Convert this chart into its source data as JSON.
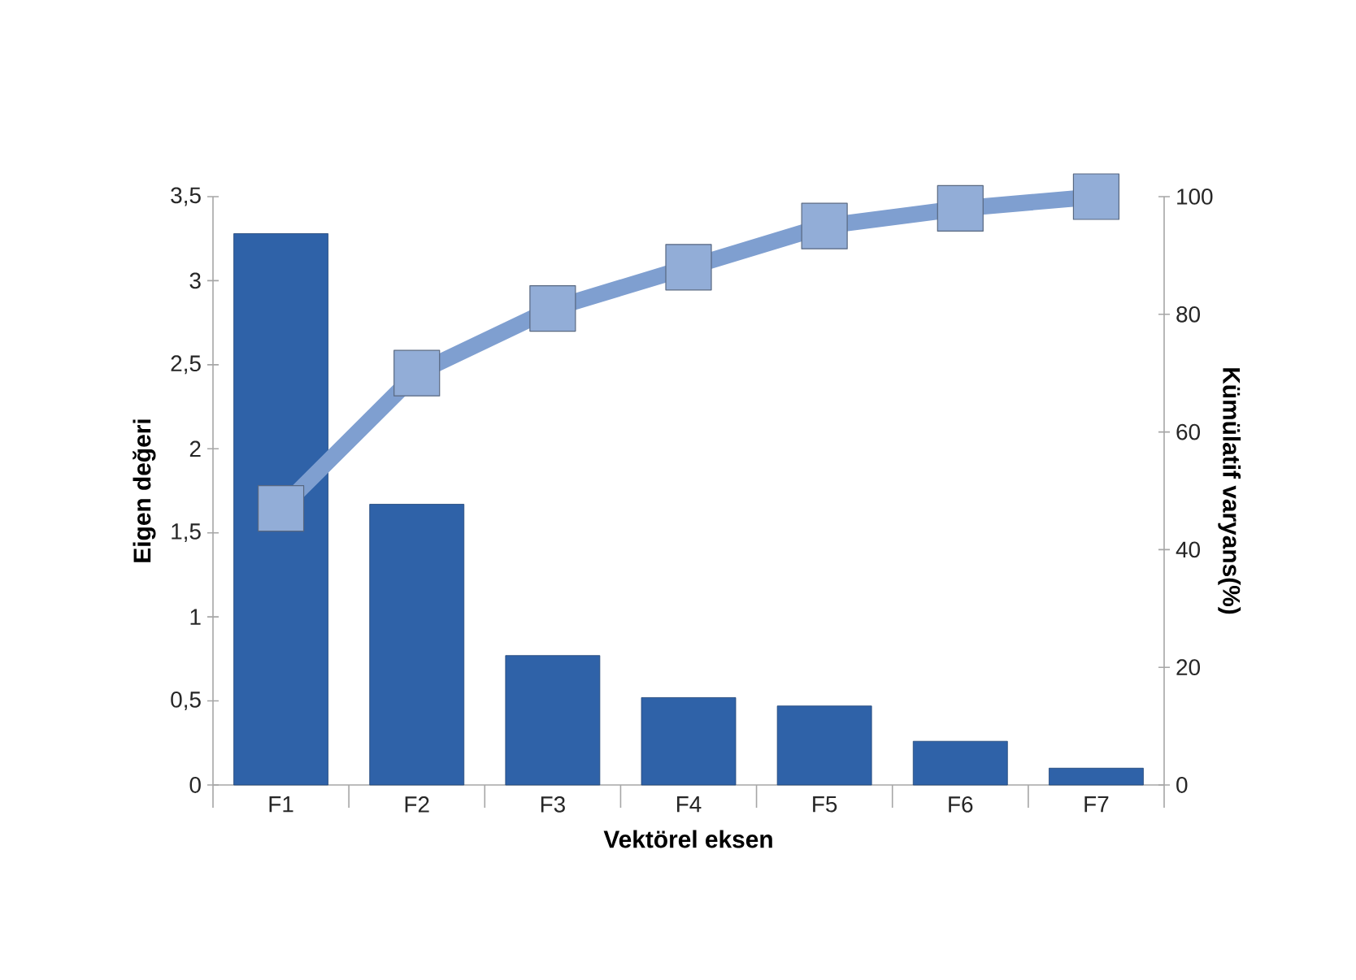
{
  "chart_data": {
    "type": "bar",
    "xlabel": "Vektörel eksen",
    "ylabel": "Eigen değeri",
    "y2label": "Kümülatif varyans(%)",
    "categories": [
      "F1",
      "F2",
      "F3",
      "F4",
      "F5",
      "F6",
      "F7"
    ],
    "series": [
      {
        "color": "#2f62a8",
        "values": [
          3.28,
          1.67,
          0.77,
          0.52,
          0.47,
          0.26,
          0.1
        ]
      },
      {
        "type": "line",
        "axis": "y2",
        "color": "#7f9fd0",
        "marker": "square",
        "values": [
          47,
          70,
          81,
          88,
          95,
          98,
          100
        ]
      }
    ],
    "ylim": [
      0,
      3.5
    ],
    "yticks": [
      0,
      {
        "value": 0.5,
        "label": "0,5"
      },
      1,
      {
        "value": 1.5,
        "label": "1,5"
      },
      2,
      {
        "value": 2.5,
        "label": "2,5"
      },
      3,
      {
        "value": 3.5,
        "label": "3,5"
      }
    ],
    "y2lim": [
      0,
      100
    ],
    "y2ticks": [
      0,
      20,
      40,
      60,
      80,
      100
    ]
  }
}
